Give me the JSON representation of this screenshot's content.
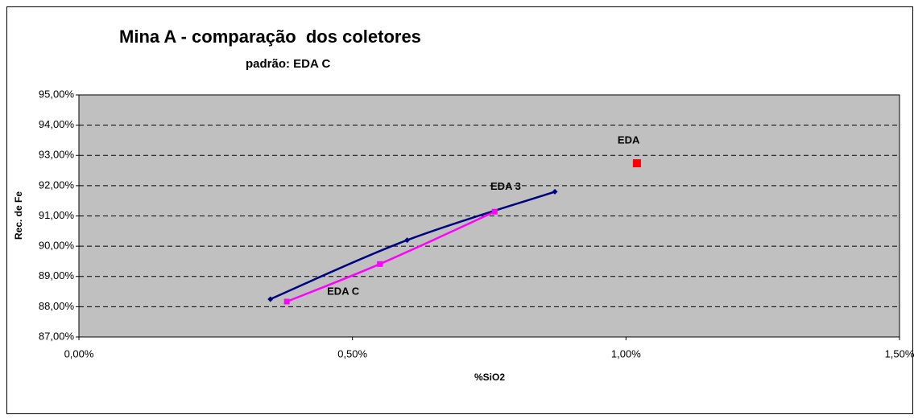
{
  "chart_data": {
    "type": "line",
    "title": "Mina A - comparação  dos coletores",
    "subtitle": "padrão: EDA C",
    "xlabel": "%SiO2",
    "ylabel": "Rec. de Fe",
    "xlim": [
      0,
      1.5
    ],
    "ylim": [
      87,
      95
    ],
    "xticks": [
      {
        "value": 0,
        "label": "0,00%"
      },
      {
        "value": 0.5,
        "label": "0,50%"
      },
      {
        "value": 1.0,
        "label": "1,00%"
      },
      {
        "value": 1.5,
        "label": "1,50%"
      }
    ],
    "yticks": [
      {
        "value": 87,
        "label": "87,00%"
      },
      {
        "value": 88,
        "label": "88,00%"
      },
      {
        "value": 89,
        "label": "89,00%"
      },
      {
        "value": 90,
        "label": "90,00%"
      },
      {
        "value": 91,
        "label": "91,00%"
      },
      {
        "value": 92,
        "label": "92,00%"
      },
      {
        "value": 93,
        "label": "93,00%"
      },
      {
        "value": 94,
        "label": "94,00%"
      },
      {
        "value": 95,
        "label": "95,00%"
      }
    ],
    "grid": true,
    "series": [
      {
        "name": "EDA 3",
        "color": "#000080",
        "marker": "diamond",
        "x": [
          0.35,
          0.6,
          0.87
        ],
        "values": [
          88.25,
          90.2,
          91.8
        ]
      },
      {
        "name": "EDA C",
        "color": "#FF00FF",
        "marker": "square",
        "x": [
          0.38,
          0.55,
          0.76
        ],
        "values": [
          88.17,
          89.41,
          91.14
        ]
      },
      {
        "name": "EDA",
        "color": "#FF0000",
        "marker": "square",
        "x": [
          1.02
        ],
        "values": [
          92.74
        ]
      }
    ]
  }
}
